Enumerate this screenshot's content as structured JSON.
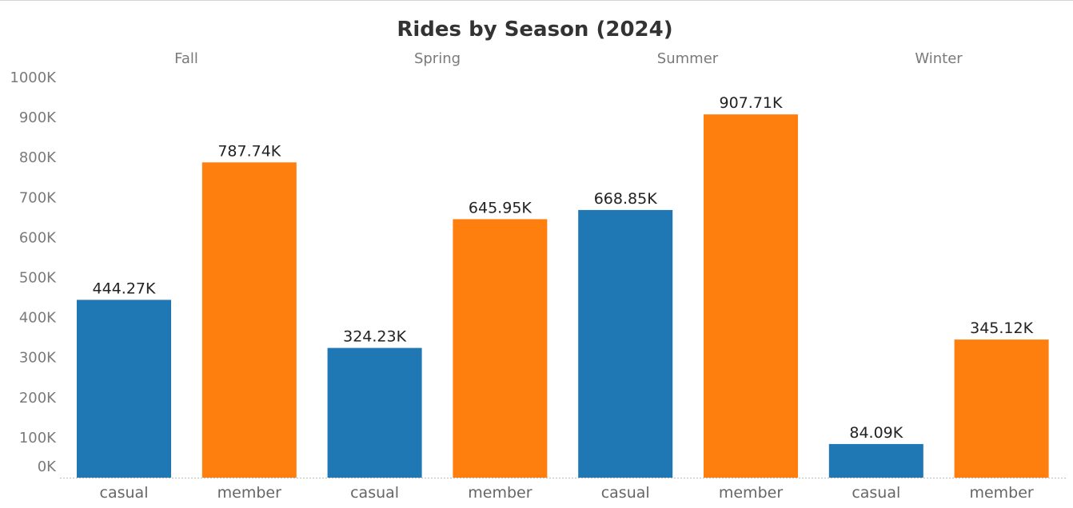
{
  "chart_data": {
    "type": "bar",
    "title": "Rides by Season (2024)",
    "groups": [
      "Fall",
      "Spring",
      "Summer",
      "Winter"
    ],
    "categories": [
      "casual",
      "member"
    ],
    "bars": [
      {
        "group": "Fall",
        "category": "casual",
        "value": 444270,
        "label": "444.27K"
      },
      {
        "group": "Fall",
        "category": "member",
        "value": 787740,
        "label": "787.74K"
      },
      {
        "group": "Spring",
        "category": "casual",
        "value": 324230,
        "label": "324.23K"
      },
      {
        "group": "Spring",
        "category": "member",
        "value": 645950,
        "label": "645.95K"
      },
      {
        "group": "Summer",
        "category": "casual",
        "value": 668850,
        "label": "668.85K"
      },
      {
        "group": "Summer",
        "category": "member",
        "value": 907710,
        "label": "907.71K"
      },
      {
        "group": "Winter",
        "category": "casual",
        "value": 84090,
        "label": "84.09K"
      },
      {
        "group": "Winter",
        "category": "member",
        "value": 345120,
        "label": "345.12K"
      }
    ],
    "colors": {
      "casual": "#1f77b4",
      "member": "#ff7f0e"
    },
    "ylim": [
      0,
      1000000
    ],
    "yticks": [
      {
        "value": 0,
        "label": "0K"
      },
      {
        "value": 100000,
        "label": "100K"
      },
      {
        "value": 200000,
        "label": "200K"
      },
      {
        "value": 300000,
        "label": "300K"
      },
      {
        "value": 400000,
        "label": "400K"
      },
      {
        "value": 500000,
        "label": "500K"
      },
      {
        "value": 600000,
        "label": "600K"
      },
      {
        "value": 700000,
        "label": "700K"
      },
      {
        "value": 800000,
        "label": "800K"
      },
      {
        "value": 900000,
        "label": "900K"
      },
      {
        "value": 1000000,
        "label": "1000K"
      }
    ],
    "xlabel": "",
    "ylabel": "",
    "grid": false,
    "legend": "none"
  }
}
